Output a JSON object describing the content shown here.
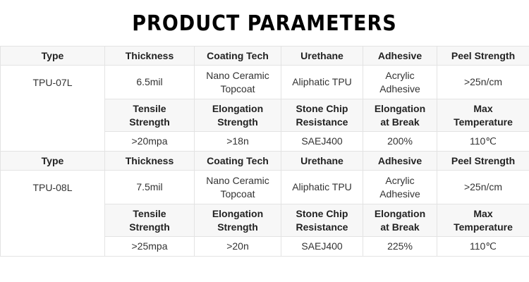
{
  "title": "PRODUCT PARAMETERS",
  "table": {
    "type_label": "Type",
    "headers_row1": [
      "Thickness",
      "Coating Tech",
      "Urethane",
      "Adhesive",
      "Peel Strength"
    ],
    "headers_row2": [
      "Tensile\nStrength",
      "Elongation\nStrength",
      "Stone Chip\nResistance",
      "Elongation\nat Break",
      "Max\nTemperature"
    ],
    "blocks": [
      {
        "type_value": "TPU-07L",
        "row1": [
          "6.5mil",
          "Nano Ceramic\nTopcoat",
          "Aliphatic TPU",
          "Acrylic\nAdhesive",
          ">25n/cm"
        ],
        "row2": [
          ">20mpa",
          ">18n",
          "SAEJ400",
          "200%",
          "110℃"
        ]
      },
      {
        "type_value": "TPU-08L",
        "row1": [
          "7.5mil",
          "Nano Ceramic\nTopcoat",
          "Aliphatic TPU",
          "Acrylic\nAdhesive",
          ">25n/cm"
        ],
        "row2": [
          ">25mpa",
          ">20n",
          "SAEJ400",
          "225%",
          "110℃"
        ]
      }
    ]
  }
}
